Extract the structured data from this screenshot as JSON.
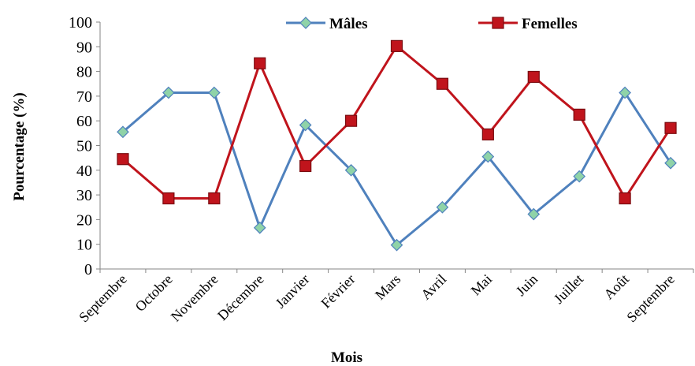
{
  "chart_data": {
    "type": "line",
    "title": "",
    "xlabel": "Mois",
    "ylabel": "Pourcentage (%)",
    "ylim": [
      0,
      100
    ],
    "yticks": [
      0,
      10,
      20,
      30,
      40,
      50,
      60,
      70,
      80,
      90,
      100
    ],
    "grid": false,
    "legend_position": "top",
    "categories": [
      "Septembre",
      "Octobre",
      "Novembre",
      "Décembre",
      "Janvier",
      "Février",
      "Mars",
      "Avril",
      "Mai",
      "Juin",
      "Juillet",
      "Août",
      "Septembre"
    ],
    "series": [
      {
        "name": "Mâles",
        "color": "#4f81bd",
        "marker": "diamond",
        "marker_color": "#8fd3a8",
        "values": [
          55.5,
          71.4,
          71.4,
          16.7,
          58.3,
          40.0,
          9.7,
          25.0,
          45.5,
          22.2,
          37.5,
          71.4,
          42.9
        ]
      },
      {
        "name": "Femelles",
        "color": "#c0141c",
        "marker": "square",
        "marker_color": "#c0141c",
        "values": [
          44.5,
          28.6,
          28.6,
          83.3,
          41.7,
          60.0,
          90.3,
          75.0,
          54.5,
          77.8,
          62.5,
          28.6,
          57.1
        ]
      }
    ]
  }
}
